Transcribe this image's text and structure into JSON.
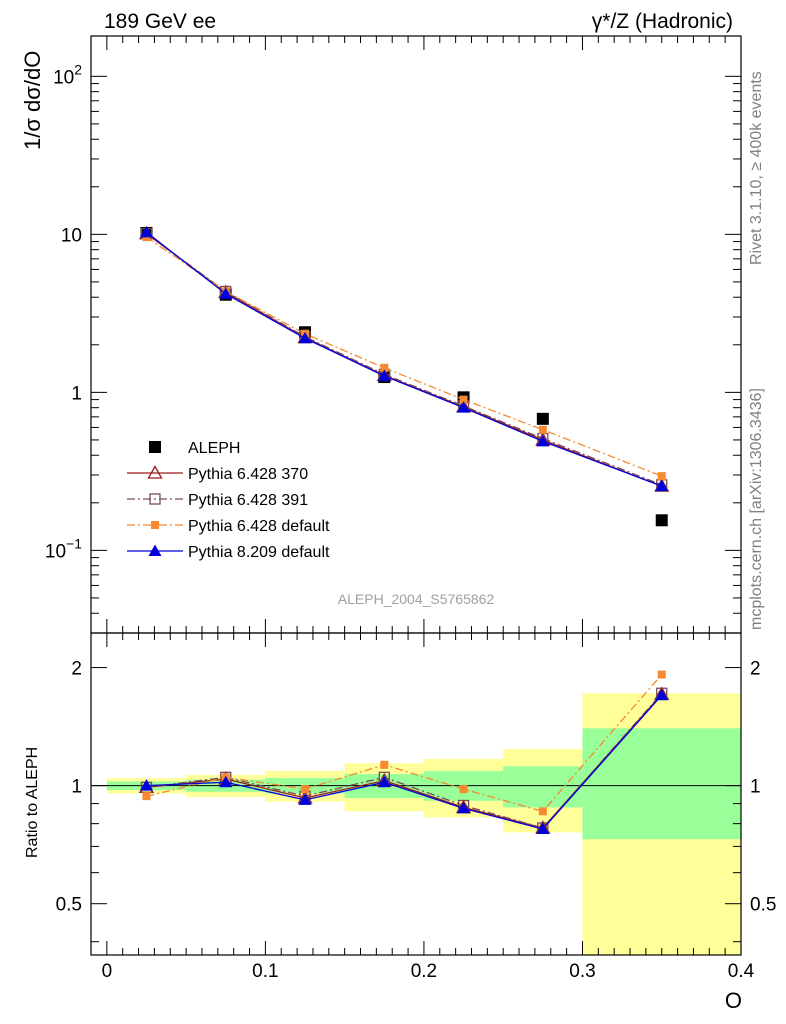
{
  "header": {
    "left": "189 GeV ee",
    "right": "γ*/Z (Hadronic)"
  },
  "side_notes": {
    "rivet": "Rivet 3.1.10, ≥ 400k events",
    "mcplots": "mcplots.cern.ch [arXiv:1306.3436]"
  },
  "analysis_id": "ALEPH_2004_S5765862",
  "chart_data": [
    {
      "type": "line",
      "panel": "main",
      "ylabel": "1/σ  dσ/dO",
      "yscale": "log",
      "ylim": [
        0.03,
        180
      ],
      "xlim": [
        -0.01,
        0.4
      ],
      "yticks": [
        {
          "v": 0.1,
          "base": "10",
          "exp": "−1"
        },
        {
          "v": 1,
          "label": "1"
        },
        {
          "v": 10,
          "label": "10"
        },
        {
          "v": 100,
          "base": "10",
          "exp": "2"
        }
      ],
      "legend_position": "bottom-left",
      "series": [
        {
          "name": "ALEPH",
          "color": "#000000",
          "marker": "square-filled",
          "line": "none",
          "x": [
            0.025,
            0.075,
            0.125,
            0.175,
            0.225,
            0.275,
            0.35
          ],
          "y": [
            10.2,
            4.15,
            2.4,
            1.25,
            0.93,
            0.68,
            0.155
          ],
          "bins": [
            [
              0,
              0.05
            ],
            [
              0.05,
              0.1
            ],
            [
              0.1,
              0.15
            ],
            [
              0.15,
              0.2
            ],
            [
              0.2,
              0.25
            ],
            [
              0.25,
              0.3
            ],
            [
              0.3,
              0.4
            ]
          ]
        },
        {
          "name": "Pythia 6.428 370",
          "color": "#9b1b1b",
          "marker": "triangle-open",
          "line": "solid",
          "x": [
            0.025,
            0.075,
            0.125,
            0.175,
            0.225,
            0.275,
            0.35
          ],
          "y": [
            10.1,
            4.3,
            2.22,
            1.28,
            0.81,
            0.5,
            0.255
          ]
        },
        {
          "name": "Pythia 6.428 391",
          "color": "#7a4a5a",
          "marker": "square-open",
          "line": "dashdot",
          "x": [
            0.025,
            0.075,
            0.125,
            0.175,
            0.225,
            0.275,
            0.35
          ],
          "y": [
            10.1,
            4.35,
            2.25,
            1.3,
            0.82,
            0.51,
            0.26
          ]
        },
        {
          "name": "Pythia 6.428 default",
          "color": "#f58a30",
          "marker": "square-filled-small",
          "line": "dashdot",
          "x": [
            0.025,
            0.075,
            0.125,
            0.175,
            0.225,
            0.275,
            0.35
          ],
          "y": [
            9.6,
            4.35,
            2.35,
            1.43,
            0.9,
            0.58,
            0.295
          ]
        },
        {
          "name": "Pythia 8.209 default",
          "color": "#0000dd",
          "marker": "triangle-filled",
          "line": "solid",
          "x": [
            0.025,
            0.075,
            0.125,
            0.175,
            0.225,
            0.275,
            0.35
          ],
          "y": [
            10.3,
            4.2,
            2.2,
            1.27,
            0.8,
            0.49,
            0.255
          ]
        }
      ]
    },
    {
      "type": "line",
      "panel": "ratio",
      "xlabel": "O",
      "ylabel": "Ratio to ALEPH",
      "yscale": "log",
      "ylim": [
        0.37,
        2.45
      ],
      "xlim": [
        -0.01,
        0.4
      ],
      "xticks": [
        0,
        0.1,
        0.2,
        0.3,
        0.4
      ],
      "xtick_labels": [
        "0",
        "0.1",
        "0.2",
        "0.3",
        "0.4"
      ],
      "yticks": [
        0.5,
        1,
        2
      ],
      "ytick_labels": [
        "0.5",
        "1",
        "2"
      ],
      "bands": [
        {
          "x0": 0,
          "x1": 0.05,
          "y1_lo": 0.975,
          "y1_hi": 1.025,
          "y2_lo": 0.955,
          "y2_hi": 1.045
        },
        {
          "x0": 0.05,
          "x1": 0.1,
          "y1_lo": 0.965,
          "y1_hi": 1.035,
          "y2_lo": 0.935,
          "y2_hi": 1.065
        },
        {
          "x0": 0.1,
          "x1": 0.15,
          "y1_lo": 0.955,
          "y1_hi": 1.045,
          "y2_lo": 0.91,
          "y2_hi": 1.09
        },
        {
          "x0": 0.15,
          "x1": 0.2,
          "y1_lo": 0.93,
          "y1_hi": 1.07,
          "y2_lo": 0.86,
          "y2_hi": 1.14
        },
        {
          "x0": 0.2,
          "x1": 0.25,
          "y1_lo": 0.915,
          "y1_hi": 1.09,
          "y2_lo": 0.83,
          "y2_hi": 1.17
        },
        {
          "x0": 0.25,
          "x1": 0.3,
          "y1_lo": 0.88,
          "y1_hi": 1.12,
          "y2_lo": 0.76,
          "y2_hi": 1.24
        },
        {
          "x0": 0.3,
          "x1": 0.4,
          "y1_lo": 0.73,
          "y1_hi": 1.4,
          "y2_lo": 0.37,
          "y2_hi": 1.72
        }
      ],
      "series": [
        {
          "name": "Pythia 6.428 370",
          "color": "#9b1b1b",
          "marker": "triangle-open",
          "line": "solid",
          "x": [
            0.025,
            0.075,
            0.125,
            0.175,
            0.225,
            0.275,
            0.35
          ],
          "y": [
            0.99,
            1.04,
            0.93,
            1.03,
            0.88,
            0.78,
            1.71
          ]
        },
        {
          "name": "Pythia 6.428 391",
          "color": "#7a4a5a",
          "marker": "square-open",
          "line": "dashdot",
          "x": [
            0.025,
            0.075,
            0.125,
            0.175,
            0.225,
            0.275,
            0.35
          ],
          "y": [
            0.99,
            1.05,
            0.94,
            1.05,
            0.89,
            0.78,
            1.72
          ]
        },
        {
          "name": "Pythia 6.428 default",
          "color": "#f58a30",
          "marker": "square-filled-small",
          "line": "dashdot",
          "x": [
            0.025,
            0.075,
            0.125,
            0.175,
            0.225,
            0.275,
            0.35
          ],
          "y": [
            0.94,
            1.05,
            0.98,
            1.13,
            0.98,
            0.86,
            1.92
          ]
        },
        {
          "name": "Pythia 8.209 default",
          "color": "#0000dd",
          "marker": "triangle-filled",
          "line": "solid",
          "x": [
            0.025,
            0.075,
            0.125,
            0.175,
            0.225,
            0.275,
            0.35
          ],
          "y": [
            1.0,
            1.02,
            0.92,
            1.02,
            0.875,
            0.775,
            1.7
          ]
        }
      ]
    }
  ]
}
